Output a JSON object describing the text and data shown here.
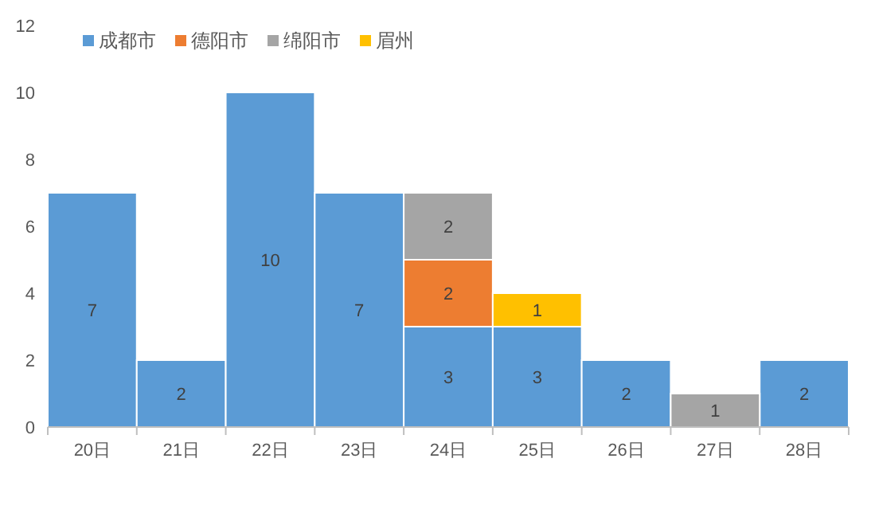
{
  "chart_data": {
    "type": "bar",
    "stacked": true,
    "categories": [
      "20日",
      "21日",
      "22日",
      "23日",
      "24日",
      "25日",
      "26日",
      "27日",
      "28日"
    ],
    "series": [
      {
        "name": "成都市",
        "color": "#5b9bd5",
        "values": [
          7,
          2,
          10,
          7,
          3,
          3,
          2,
          null,
          2
        ]
      },
      {
        "name": "德阳市",
        "color": "#ed7d31",
        "values": [
          null,
          null,
          null,
          null,
          2,
          null,
          null,
          null,
          null
        ]
      },
      {
        "name": "绵阳市",
        "color": "#a5a5a5",
        "values": [
          null,
          null,
          null,
          null,
          2,
          null,
          null,
          1,
          null
        ]
      },
      {
        "name": "眉州",
        "color": "#ffc000",
        "values": [
          null,
          null,
          null,
          null,
          null,
          1,
          null,
          null,
          null
        ]
      }
    ],
    "ylim": [
      0,
      12
    ],
    "yticks": [
      0,
      2,
      4,
      6,
      8,
      10,
      12
    ],
    "data_labels": true,
    "legend": "top left",
    "grid": false
  }
}
